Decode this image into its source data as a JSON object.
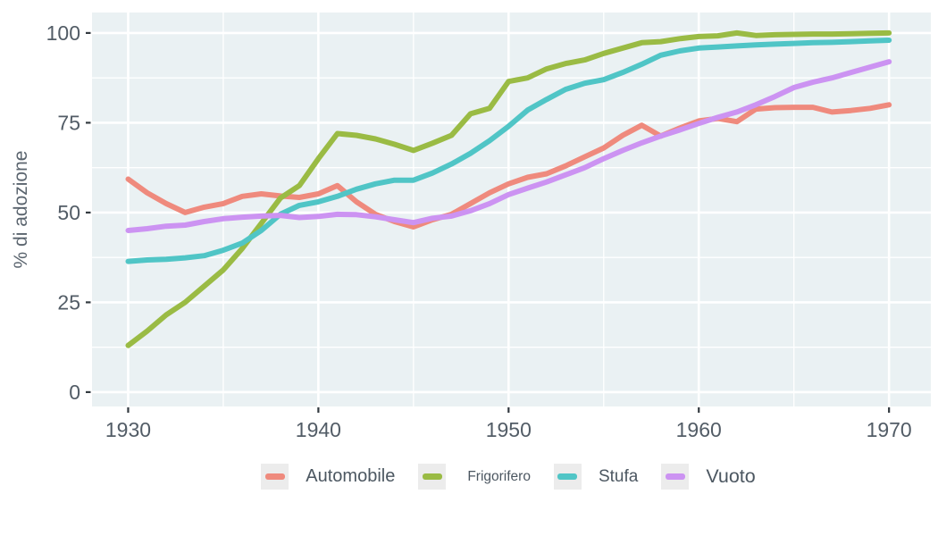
{
  "chart_data": {
    "type": "line",
    "title": "",
    "xlabel": "",
    "ylabel": "% di adozione",
    "x": [
      1930,
      1931,
      1932,
      1933,
      1934,
      1935,
      1936,
      1937,
      1938,
      1939,
      1940,
      1941,
      1942,
      1943,
      1944,
      1945,
      1946,
      1947,
      1948,
      1949,
      1950,
      1951,
      1952,
      1953,
      1954,
      1955,
      1956,
      1957,
      1958,
      1959,
      1960,
      1961,
      1962,
      1963,
      1964,
      1965,
      1966,
      1967,
      1968,
      1969,
      1970
    ],
    "series": [
      {
        "name": "Automobile",
        "color": "#EF8A7D",
        "values": [
          59.3,
          55.5,
          52.5,
          50,
          51.5,
          52.5,
          54.5,
          55.2,
          54.6,
          54.2,
          55.2,
          57.5,
          53,
          49.5,
          47.5,
          46,
          48,
          49.5,
          52.5,
          55.5,
          58,
          59.8,
          60.8,
          63,
          65.5,
          68,
          71.5,
          74.3,
          71.3,
          73.5,
          75.5,
          76.2,
          75.3,
          78.8,
          79.2,
          79.3,
          79.3,
          78,
          78.4,
          79,
          80
        ]
      },
      {
        "name": "Frigorifero",
        "color": "#9ABB44",
        "values": [
          13,
          17,
          21.5,
          25,
          29.5,
          34,
          40,
          47,
          54,
          57.5,
          65,
          72,
          71.5,
          70.5,
          69,
          67.3,
          69.3,
          71.5,
          77.5,
          79,
          86.5,
          87.5,
          90,
          91.5,
          92.5,
          94.3,
          95.8,
          97.3,
          97.6,
          98.4,
          99,
          99.2,
          100,
          99.3,
          99.5,
          99.6,
          99.7,
          99.7,
          99.8,
          99.9,
          100
        ]
      },
      {
        "name": "Stufa",
        "color": "#50C5C6",
        "values": [
          36.4,
          36.8,
          37,
          37.4,
          38,
          39.5,
          41.5,
          45,
          49.5,
          52,
          53,
          54.5,
          56.5,
          58,
          59,
          59,
          61,
          63.5,
          66.5,
          70,
          74,
          78.5,
          81.5,
          84.3,
          86,
          87,
          89,
          91.3,
          93.8,
          95,
          95.8,
          96.1,
          96.4,
          96.7,
          96.9,
          97.1,
          97.3,
          97.4,
          97.6,
          97.8,
          98
        ]
      },
      {
        "name": "Vuoto",
        "color": "#CC93F2",
        "values": [
          45,
          45.5,
          46.2,
          46.5,
          47.5,
          48.3,
          48.7,
          49,
          49.2,
          48.6,
          48.9,
          49.5,
          49.4,
          48.8,
          48,
          47.2,
          48.4,
          49,
          50.5,
          52.5,
          55,
          56.8,
          58.5,
          60.5,
          62.5,
          65,
          67.3,
          69.4,
          71.3,
          73,
          74.8,
          76.5,
          78,
          80,
          82.3,
          84.8,
          86.3,
          87.5,
          89,
          90.5,
          92
        ]
      }
    ],
    "x_ticks": [
      1930,
      1940,
      1950,
      1960,
      1970
    ],
    "x_ticks_minor": [
      1935,
      1945,
      1955,
      1965
    ],
    "y_ticks": [
      0,
      25,
      50,
      75,
      100
    ],
    "y_ticks_minor": [
      12.5,
      37.5,
      62.5,
      87.5
    ],
    "xlim": [
      1928.1,
      1972.2
    ],
    "ylim": [
      -4,
      105.7
    ],
    "grid": true,
    "legend_position": "bottom",
    "panel_color": "#EAF1F3",
    "grid_color": "#FFFFFF",
    "tick_label_color": "#525C66",
    "axis_title_color": "#5A646E",
    "tick_mark_color": "#333A40"
  }
}
